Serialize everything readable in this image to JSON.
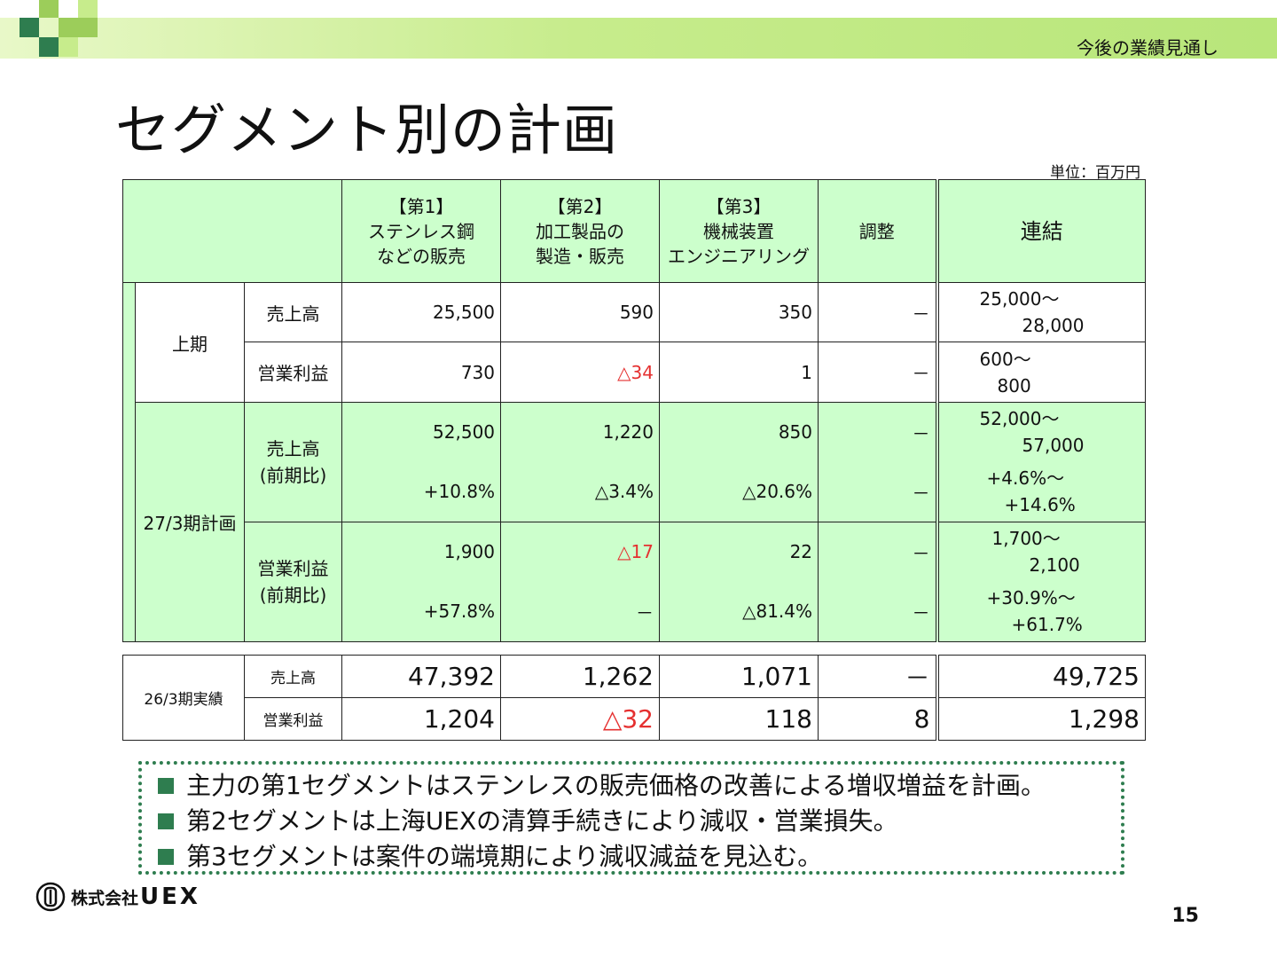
{
  "header": {
    "section": "今後の業績見通し",
    "title": "セグメント別の計画",
    "unit": "単位：百万円"
  },
  "columns": {
    "seg1": {
      "tag": "【第1】",
      "line1": "ステンレス鋼",
      "line2": "などの販売"
    },
    "seg2": {
      "tag": "【第2】",
      "line1": "加工製品の",
      "line2": "製造・販売"
    },
    "seg3": {
      "tag": "【第3】",
      "line1": "機械装置",
      "line2": "エンジニアリング"
    },
    "adj": "調整",
    "cons": "連結"
  },
  "h1": {
    "label": "上期",
    "sales": {
      "label": "売上高",
      "s1": "25,500",
      "s2": "590",
      "s3": "350",
      "adj": "－",
      "c1": "25,000～",
      "c2": "28,000"
    },
    "profit": {
      "label": "営業利益",
      "s1": "730",
      "s2": "△34",
      "s3": "1",
      "adj": "－",
      "c1": "600～",
      "c2": "800"
    }
  },
  "plan": {
    "label": "27/3期計画",
    "sales": {
      "label1": "売上高",
      "label2": "(前期比)",
      "s1": "52,500",
      "s2": "1,220",
      "s3": "850",
      "adj": "－",
      "c1": "52,000～",
      "c2": "57,000",
      "s1y": "+10.8%",
      "s2y": "△3.4%",
      "s3y": "△20.6%",
      "adjy": "－",
      "c1y": "+4.6%～",
      "c2y": "+14.6%"
    },
    "profit": {
      "label1": "営業利益",
      "label2": "(前期比)",
      "s1": "1,900",
      "s2": "△17",
      "s3": "22",
      "adj": "－",
      "c1": "1,700～",
      "c2": "2,100",
      "s1y": "+57.8%",
      "s2y": "－",
      "s3y": "△81.4%",
      "adjy": "－",
      "c1y": "+30.9%～",
      "c2y": "+61.7%"
    }
  },
  "actual": {
    "label": "26/3期実績",
    "sales": {
      "label": "売上高",
      "s1": "47,392",
      "s2": "1,262",
      "s3": "1,071",
      "adj": "－",
      "cons": "49,725"
    },
    "profit": {
      "label": "営業利益",
      "s1": "1,204",
      "s2": "△32",
      "s3": "118",
      "adj": "8",
      "cons": "1,298"
    }
  },
  "notes": [
    "主力の第1セグメントはステンレスの販売価格の改善による増収増益を計画。",
    "第2セグメントは上海UEXの清算手続きにより減収・営業損失。",
    "第3セグメントは案件の端境期により減収減益を見込む。"
  ],
  "footer": {
    "company": "株式会社",
    "brand": "UEX",
    "page": "15"
  },
  "colors": {
    "accent": "#2e7d4f",
    "table_green": "#ccffcc",
    "negative": "#e53030",
    "header_bar": "#c7ec8c"
  }
}
